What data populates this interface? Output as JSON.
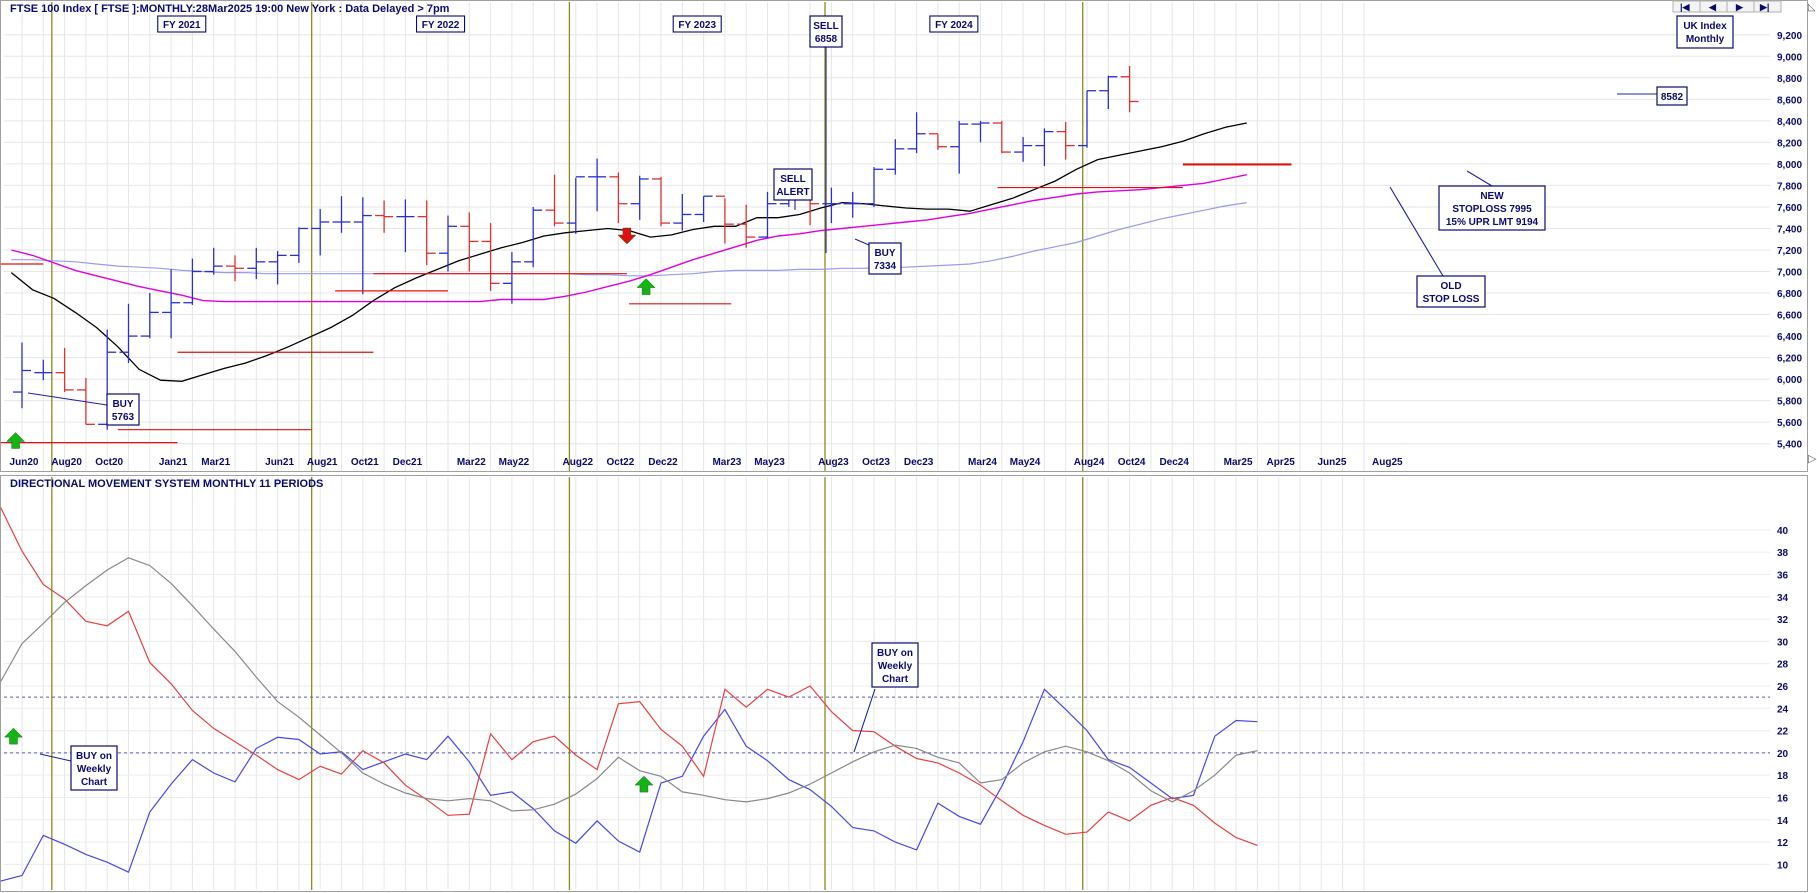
{
  "header": {
    "title": "FTSE 100 Index [ FTSE ]:MONTHLY:28Mar2025 19:00 New York : Data Delayed > 7pm",
    "index_label": [
      "UK Index",
      "Monthly"
    ]
  },
  "nav_buttons": [
    "first-icon",
    "prev-icon",
    "next-icon",
    "last-icon"
  ],
  "colors": {
    "up_bar": "#2e2ed6",
    "down_bar": "#e03030",
    "ma_short": "#000000",
    "ma_medium": "#e000e0",
    "ma_long": "#9a9af0",
    "stop_line": "#e01010",
    "fy_line": "#8a8a20",
    "di_plus": "#4848e8",
    "di_minus": "#e84040",
    "adx": "#888888",
    "label_text": "#0a0a6e"
  },
  "fy_labels": [
    "FY 2021",
    "FY 2022",
    "FY 2023",
    "FY 2024"
  ],
  "chart_data": [
    {
      "type": "ohlc",
      "name": "price",
      "y_ticks": [
        "5,400",
        "5,600",
        "5,800",
        "6,000",
        "6,200",
        "6,400",
        "6,600",
        "6,800",
        "7,000",
        "7,200",
        "7,400",
        "7,600",
        "7,800",
        "8,000",
        "8,200",
        "8,400",
        "8,600",
        "8,800",
        "9,000",
        "9,200"
      ],
      "ylim": [
        5360,
        9300
      ],
      "xlim": [
        -1,
        60
      ],
      "x_ticks": [
        {
          "i": 0,
          "label": "Jun20"
        },
        {
          "i": 2,
          "label": "Aug20"
        },
        {
          "i": 4,
          "label": "Oct20"
        },
        {
          "i": 7,
          "label": "Jan21"
        },
        {
          "i": 9,
          "label": "Mar21"
        },
        {
          "i": 12,
          "label": "Jun21"
        },
        {
          "i": 14,
          "label": "Aug21"
        },
        {
          "i": 16,
          "label": "Oct21"
        },
        {
          "i": 18,
          "label": "Dec21"
        },
        {
          "i": 21,
          "label": "Mar22"
        },
        {
          "i": 23,
          "label": "May22"
        },
        {
          "i": 26,
          "label": "Aug22"
        },
        {
          "i": 28,
          "label": "Oct22"
        },
        {
          "i": 30,
          "label": "Dec22"
        },
        {
          "i": 33,
          "label": "Mar23"
        },
        {
          "i": 35,
          "label": "May23"
        },
        {
          "i": 38,
          "label": "Aug23"
        },
        {
          "i": 40,
          "label": "Oct23"
        },
        {
          "i": 42,
          "label": "Dec23"
        },
        {
          "i": 45,
          "label": "Mar24"
        },
        {
          "i": 47,
          "label": "May24"
        },
        {
          "i": 50,
          "label": "Aug24"
        },
        {
          "i": 52,
          "label": "Oct24"
        },
        {
          "i": 54,
          "label": "Dec24"
        },
        {
          "i": 57,
          "label": "Mar25"
        },
        {
          "i": 59,
          "label": "Apr25"
        }
      ],
      "x_ticks_extra": [
        {
          "label": "Jun25"
        },
        {
          "label": "Aug25"
        }
      ],
      "fy_dividers": [
        1.4,
        13.6,
        25.7,
        37.7,
        49.8
      ],
      "bars": [
        [
          5880,
          6340,
          5730,
          6080
        ],
        [
          6060,
          6180,
          5990,
          6060
        ],
        [
          6060,
          6290,
          5880,
          5900
        ],
        [
          5900,
          6010,
          5580,
          5580
        ],
        [
          5580,
          6460,
          5530,
          6250
        ],
        [
          6250,
          6700,
          6150,
          6400
        ],
        [
          6400,
          6800,
          6380,
          6620
        ],
        [
          6620,
          7020,
          6380,
          6710
        ],
        [
          6710,
          7120,
          6690,
          7000
        ],
        [
          7000,
          7220,
          6970,
          7050
        ],
        [
          7050,
          7150,
          6910,
          7030
        ],
        [
          7030,
          7220,
          6930,
          7090
        ],
        [
          7090,
          7190,
          6880,
          7150
        ],
        [
          7150,
          7410,
          7080,
          7400
        ],
        [
          7400,
          7580,
          7150,
          7460
        ],
        [
          7460,
          7700,
          7360,
          7460
        ],
        [
          7460,
          7690,
          6790,
          7520
        ],
        [
          7520,
          7660,
          7360,
          7510
        ],
        [
          7510,
          7670,
          7180,
          7510
        ],
        [
          7510,
          7660,
          7060,
          7170
        ],
        [
          7170,
          7520,
          7000,
          7420
        ],
        [
          7420,
          7550,
          7000,
          7280
        ],
        [
          7280,
          7450,
          6820,
          6890
        ],
        [
          6890,
          7180,
          6700,
          7090
        ],
        [
          7090,
          7600,
          7040,
          7570
        ],
        [
          7570,
          7900,
          7420,
          7450
        ],
        [
          7450,
          7870,
          7350,
          7880
        ],
        [
          7880,
          8050,
          7560,
          7880
        ],
        [
          7880,
          7920,
          7450,
          7630
        ],
        [
          7630,
          7890,
          7480,
          7860
        ],
        [
          7860,
          7880,
          7420,
          7450
        ],
        [
          7450,
          7720,
          7380,
          7530
        ],
        [
          7530,
          7700,
          7460,
          7700
        ],
        [
          7700,
          7680,
          7260,
          7440
        ],
        [
          7440,
          7620,
          7220,
          7320
        ],
        [
          7320,
          7740,
          7310,
          7630
        ],
        [
          7630,
          7700,
          7600,
          7720
        ],
        [
          7720,
          7770,
          7430,
          7630
        ],
        [
          7630,
          7780,
          7450,
          7630
        ],
        [
          7630,
          7740,
          7500,
          7630
        ],
        [
          7630,
          7970,
          7600,
          7950
        ],
        [
          7950,
          8230,
          7900,
          8140
        ],
        [
          8140,
          8480,
          8100,
          8280
        ],
        [
          8280,
          8280,
          8130,
          8160
        ],
        [
          8160,
          8400,
          7910,
          8370
        ],
        [
          8370,
          8400,
          8200,
          8380
        ],
        [
          8380,
          8400,
          8100,
          8110
        ],
        [
          8110,
          8250,
          8020,
          8170
        ],
        [
          8170,
          8330,
          7980,
          8300
        ],
        [
          8300,
          8390,
          8040,
          8170
        ],
        [
          8170,
          8680,
          8150,
          8680
        ],
        [
          8680,
          8820,
          8510,
          8810
        ],
        [
          8810,
          8910,
          8480,
          8580
        ]
      ],
      "ma_short": [
        6990,
        6830,
        6750,
        6620,
        6480,
        6300,
        6090,
        5990,
        5980,
        6040,
        6100,
        6150,
        6220,
        6300,
        6390,
        6480,
        6590,
        6730,
        6850,
        6940,
        7020,
        7100,
        7160,
        7220,
        7270,
        7330,
        7360,
        7380,
        7400,
        7380,
        7320,
        7340,
        7390,
        7420,
        7420,
        7500,
        7500,
        7530,
        7590,
        7640,
        7630,
        7610,
        7590,
        7580,
        7580,
        7560,
        7620,
        7680,
        7760,
        7840,
        7950,
        8040,
        8080,
        8120,
        8160,
        8210,
        8280,
        8340,
        8380
      ],
      "ma_medium": [
        7200,
        7150,
        7080,
        7010,
        6960,
        6910,
        6860,
        6820,
        6780,
        6730,
        6720,
        6720,
        6720,
        6720,
        6720,
        6720,
        6720,
        6720,
        6720,
        6720,
        6720,
        6720,
        6720,
        6740,
        6740,
        6740,
        6770,
        6810,
        6860,
        6910,
        6970,
        7040,
        7110,
        7170,
        7230,
        7290,
        7330,
        7350,
        7380,
        7400,
        7420,
        7440,
        7460,
        7480,
        7510,
        7540,
        7580,
        7620,
        7660,
        7690,
        7720,
        7740,
        7750,
        7760,
        7780,
        7800,
        7820,
        7860,
        7900
      ],
      "ma_long": [
        7110,
        7110,
        7100,
        7090,
        7070,
        7050,
        7040,
        7030,
        7010,
        7000,
        6990,
        6990,
        6980,
        6980,
        6980,
        6980,
        6980,
        6980,
        6980,
        6980,
        6980,
        6980,
        6980,
        6980,
        6980,
        6980,
        6980,
        6970,
        6970,
        6960,
        6960,
        6970,
        6980,
        7000,
        7010,
        7010,
        7010,
        7020,
        7020,
        7030,
        7030,
        7040,
        7040,
        7050,
        7060,
        7070,
        7100,
        7140,
        7190,
        7230,
        7270,
        7330,
        7390,
        7440,
        7490,
        7530,
        7570,
        7610,
        7640
      ],
      "stop_lines": [
        {
          "x1": -1,
          "x2": 1,
          "y": 7070
        },
        {
          "x1": -1,
          "x2": 7.3,
          "y": 5410
        },
        {
          "x1": 4.5,
          "x2": 13.6,
          "y": 5530
        },
        {
          "x1": 7.3,
          "x2": 16.5,
          "y": 6250
        },
        {
          "x1": 14.7,
          "x2": 20,
          "y": 6820
        },
        {
          "x1": 16.5,
          "x2": 28.4,
          "y": 6980
        },
        {
          "x1": 28.5,
          "x2": 33.3,
          "y": 6700
        },
        {
          "x1": 45.8,
          "x2": 54.5,
          "y": 7780
        },
        {
          "x1": 54.5,
          "x2": 59.6,
          "y": 7995
        }
      ],
      "annotations": [
        {
          "lines": [
            "BUY",
            "5763"
          ]
        },
        {
          "lines": [
            "SELL",
            "ALERT"
          ]
        },
        {
          "lines": [
            "SELL",
            "6858"
          ]
        },
        {
          "lines": [
            "BUY",
            "7334"
          ]
        },
        {
          "lines": [
            "OLD",
            "STOP LOSS"
          ]
        },
        {
          "lines": [
            "NEW",
            "STOPLOSS 7995",
            "15% UPR LMT 9194"
          ]
        },
        {
          "lines": [
            "8582"
          ]
        }
      ],
      "arrows": [
        {
          "dir": "up",
          "color": "#14b414",
          "i": -0.3,
          "y": 5430
        },
        {
          "dir": "down",
          "color": "#e01010",
          "i": 28.4,
          "y": 7330
        },
        {
          "dir": "up",
          "color": "#14b414",
          "i": 29.3,
          "y": 6860
        }
      ]
    },
    {
      "type": "line",
      "name": "dms",
      "title": "DIRECTIONAL MOVEMENT SYSTEM MONTHLY 11 PERIODS",
      "y_ticks": [
        "10",
        "12",
        "14",
        "16",
        "18",
        "20",
        "22",
        "24",
        "26",
        "28",
        "30",
        "32",
        "34",
        "36",
        "38",
        "40"
      ],
      "ylim": [
        8.6,
        42.5
      ],
      "reference_lines": [
        20,
        25
      ],
      "series": [
        {
          "key": "di_plus",
          "values": [
            8.5,
            9.0,
            12.6,
            11.8,
            10.9,
            10.2,
            9.3,
            14.7,
            17.2,
            19.4,
            18.2,
            17.4,
            20.4,
            21.4,
            21.2,
            19.9,
            20.1,
            18.5,
            19.2,
            19.9,
            19.4,
            21.5,
            19.2,
            16.2,
            16.5,
            15.0,
            13.0,
            11.9,
            13.9,
            12.1,
            11.1,
            17.3,
            17.9,
            21.5,
            23.9,
            20.6,
            19.3,
            17.6,
            16.7,
            15.2,
            13.3,
            13.0,
            12.0,
            11.3,
            15.5,
            14.3,
            13.6,
            17.0,
            21.0,
            25.7,
            23.9,
            22.0,
            19.4,
            18.7,
            17.3,
            15.9,
            16.2,
            21.5,
            22.9,
            22.8
          ]
        },
        {
          "key": "di_minus",
          "values": [
            42.0,
            38.1,
            35.1,
            33.8,
            31.8,
            31.4,
            32.7,
            28.1,
            26.2,
            23.8,
            22.2,
            21.0,
            19.8,
            18.5,
            17.6,
            18.8,
            18.1,
            20.2,
            19.1,
            17.1,
            15.8,
            14.4,
            14.5,
            21.7,
            19.4,
            21.0,
            21.5,
            19.8,
            18.5,
            24.4,
            24.6,
            22.1,
            20.6,
            17.9,
            25.7,
            24.1,
            25.7,
            25.0,
            26.0,
            23.7,
            22.0,
            21.9,
            20.6,
            19.5,
            19.1,
            18.2,
            17.1,
            15.7,
            14.4,
            13.5,
            12.7,
            12.9,
            14.7,
            13.9,
            15.3,
            16.0,
            15.3,
            13.7,
            12.4,
            11.7
          ]
        },
        {
          "key": "adx",
          "values": [
            26.4,
            29.8,
            31.6,
            33.5,
            35.0,
            36.4,
            37.5,
            36.8,
            35.2,
            33.2,
            31.1,
            29.1,
            26.8,
            24.6,
            23.2,
            21.6,
            20.0,
            18.2,
            17.2,
            16.4,
            15.9,
            15.7,
            15.9,
            15.7,
            14.8,
            14.9,
            15.4,
            16.3,
            17.7,
            19.6,
            18.4,
            17.9,
            16.5,
            16.2,
            15.8,
            15.6,
            15.9,
            16.4,
            17.2,
            18.2,
            19.2,
            20.1,
            20.7,
            20.4,
            19.6,
            19.1,
            17.3,
            17.6,
            19.1,
            20.1,
            20.6,
            20.1,
            19.3,
            18.2,
            16.6,
            15.6,
            16.6,
            18.0,
            19.8,
            20.2
          ]
        }
      ],
      "annotations": [
        {
          "lines": [
            "BUY on",
            "Weekly",
            "Chart"
          ]
        },
        {
          "lines": [
            "BUY on",
            "Weekly",
            "Chart"
          ]
        }
      ],
      "arrows": [
        {
          "dir": "up",
          "color": "#14b414",
          "i": -0.4,
          "y": 21.5
        },
        {
          "dir": "up",
          "color": "#14b414",
          "i": 29.2,
          "y": 17.2
        }
      ]
    }
  ]
}
